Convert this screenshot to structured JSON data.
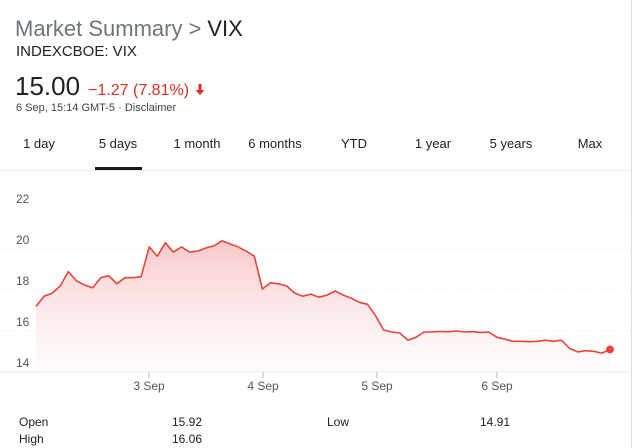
{
  "header": {
    "crumb": "Market Summary",
    "separator": ">",
    "ticker": "VIX",
    "exchange": "INDEXCBOE: VIX"
  },
  "quote": {
    "price": "15.00",
    "change": "−1.27 (7.81%)",
    "direction_icon": "arrow-down-icon",
    "timestamp": "6 Sep, 15:14 GMT-5 · ",
    "disclaimer": "Disclaimer",
    "change_color": "#d93025"
  },
  "tabs": [
    {
      "label": "1 day",
      "selected": false
    },
    {
      "label": "5 days",
      "selected": true
    },
    {
      "label": "1 month",
      "selected": false
    },
    {
      "label": "6 months",
      "selected": false
    },
    {
      "label": "YTD",
      "selected": false
    },
    {
      "label": "1 year",
      "selected": false
    },
    {
      "label": "5 years",
      "selected": false
    },
    {
      "label": "Max",
      "selected": false
    }
  ],
  "chart_data": {
    "type": "area",
    "x_tick_labels": [
      "3 Sep",
      "4 Sep",
      "5 Sep",
      "6 Sep"
    ],
    "y_ticks": [
      14,
      16,
      18,
      20,
      22
    ],
    "ylim": [
      14,
      22
    ],
    "grid": true,
    "line_color": "#e8453c",
    "series": [
      {
        "values": [
          17.2,
          17.7,
          17.85,
          18.2,
          18.9,
          18.45,
          18.25,
          18.1,
          18.6,
          18.7,
          18.3,
          18.6,
          18.6,
          18.65,
          20.1,
          19.65,
          20.3,
          19.85,
          20.1,
          19.85,
          19.9,
          20.05,
          20.15,
          20.4,
          20.25,
          20.1,
          19.9,
          19.65,
          18.05,
          18.35,
          18.3,
          18.2,
          17.85,
          17.7,
          17.8,
          17.65,
          17.75,
          17.95,
          17.75,
          17.6,
          17.4,
          17.3,
          16.75,
          16.05,
          15.95,
          15.9,
          15.55,
          15.7,
          15.95,
          15.95,
          15.98,
          15.96,
          16.0,
          15.95,
          15.97,
          15.92,
          15.95,
          15.7,
          15.6,
          15.5,
          15.5,
          15.48,
          15.5,
          15.55,
          15.5,
          15.55,
          15.15,
          14.98,
          15.04,
          15.01,
          14.92,
          15.1
        ]
      }
    ]
  },
  "stats": [
    {
      "label": "Open",
      "value": "15.92"
    },
    {
      "label": "Low",
      "value": "14.91"
    },
    {
      "label": "High",
      "value": "16.06"
    }
  ]
}
